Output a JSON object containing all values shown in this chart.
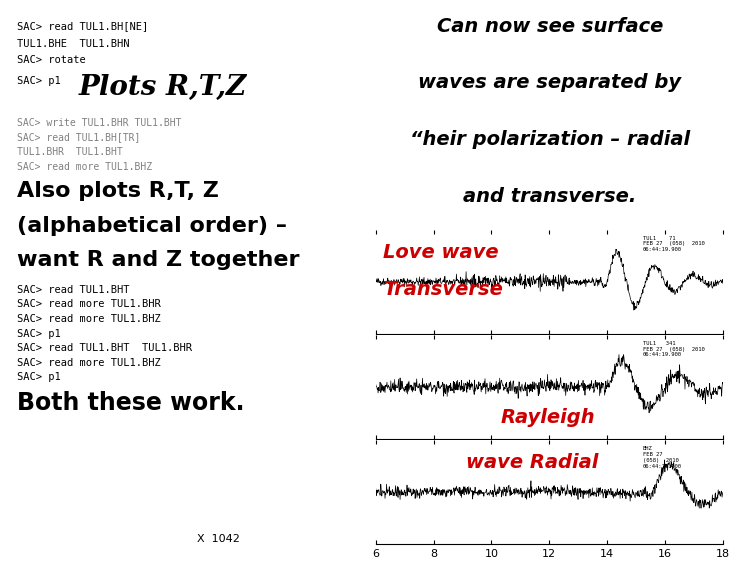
{
  "bg_color": "#ffffff",
  "left_panel": {
    "line1": "SAC> read TUL1.BH[NE]",
    "line2": "TUL1.BHE  TUL1.BHN",
    "line3": "SAC> rotate",
    "sac_p1": "SAC> p1",
    "big1": "Plots R,T,Z",
    "gray1": "SAC> write TUL1.BHR TUL1.BHT",
    "gray2": "SAC> read TUL1.BH[TR]",
    "gray3": "TUL1.BHR  TUL1.BHT",
    "gray4": "SAC> read more TUL1.BHZ",
    "big2_line1": "Also plots R,T, Z",
    "big2_line2": "(alphabetical order) –",
    "big2_line3": "want R and Z together",
    "sac_lines": [
      "SAC> read TUL1.BHT",
      "SAC> read more TUL1.BHR",
      "SAC> read more TUL1.BHZ",
      "SAC> p1",
      "SAC> read TUL1.BHT  TUL1.BHR",
      "SAC> read more TUL1.BHZ",
      "SAC> p1"
    ],
    "big3": "Both these work.",
    "footnote": "X  1042"
  },
  "right_panel": {
    "title_line1": "Can now see surface",
    "title_line2": "waves are separated by",
    "title_line3": "“heir polarization – radial",
    "title_line4": "and transverse.",
    "label1_line1": "Love wave",
    "label1_line2": "Transverse",
    "label2_line1": "Rayleigh",
    "label2_line2": "wave Radial",
    "label_color": "#cc0000",
    "xmin": 6,
    "xmax": 18,
    "xticks": [
      6,
      8,
      10,
      12,
      14,
      16,
      18
    ],
    "info_texts": [
      "TUL1    71\nFEB 27  (058)  2010\n06:44:19.900",
      "TUL1   341\nFEB 27  (058)  2010\n06:44:19.900",
      "BHZ\nFEB 27\n(058)  2010\n06:44:19.900"
    ]
  }
}
